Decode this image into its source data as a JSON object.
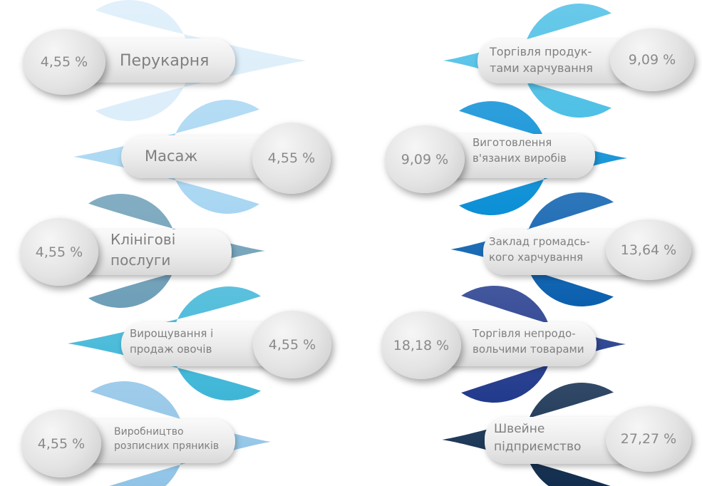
{
  "chart_data": {
    "type": "table",
    "title": "",
    "unit": "%",
    "items": [
      {
        "label": [
          "Перукарня"
        ],
        "value": 4.55,
        "value_text": "4,55 %",
        "color": "#dceefa"
      },
      {
        "label": [
          "Масаж"
        ],
        "value": 4.55,
        "value_text": "4,55 %",
        "color": "#a8d6f2"
      },
      {
        "label": [
          "Клінігові",
          "послуги"
        ],
        "value": 4.55,
        "value_text": "4,55 %",
        "color": "#6e9fb8"
      },
      {
        "label": [
          "Вирощування і",
          "продаж овочів"
        ],
        "value": 4.55,
        "value_text": "4,55 %",
        "color": "#3fb6d7"
      },
      {
        "label": [
          "Виробництво",
          "розписних пряників"
        ],
        "value": 4.55,
        "value_text": "4,55 %",
        "color": "#8ec3e6"
      },
      {
        "label": [
          "Торгівля продук-",
          "тами харчування"
        ],
        "value": 9.09,
        "value_text": "9,09 %",
        "color": "#4fc0e6"
      },
      {
        "label": [
          "Виготовлення",
          "в'язаних виробів"
        ],
        "value": 9.09,
        "value_text": "9,09 %",
        "color": "#0b8fd6"
      },
      {
        "label": [
          "Заклад громадсь-",
          "кого харчування"
        ],
        "value": 13.64,
        "value_text": "13,64 %",
        "color": "#0a5fae"
      },
      {
        "label": [
          "Торгівля непродо-",
          "вольчими товарами"
        ],
        "value": 18.18,
        "value_text": "18,18 %",
        "color": "#223a8c"
      },
      {
        "label": [
          "Швейне",
          "підприємство"
        ],
        "value": 27.27,
        "value_text": "27,27 %",
        "color": "#0e2a4c"
      }
    ]
  }
}
